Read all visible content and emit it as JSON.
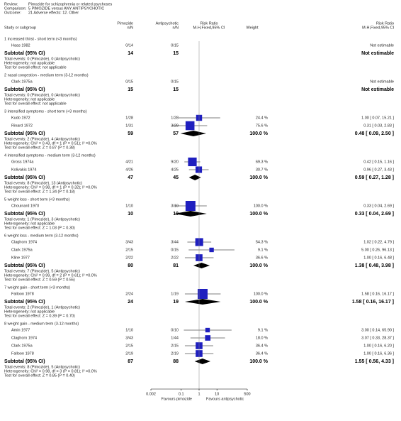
{
  "chart_data": {
    "type": "forest",
    "log": true,
    "header": [
      {
        "label": "Review:",
        "text": "Pimozide for schizophrenia or related psychoses"
      },
      {
        "label": "Comparison:",
        "text": "5 PIMOZIDE versus ANY ANTIPSYCHOTIC"
      },
      {
        "label": "Outcome:",
        "text": "21 Adverse effects: 12. Other"
      }
    ],
    "columns": {
      "study": "Study or subgroup",
      "pimozide": [
        "Pimozide",
        "n/N"
      ],
      "antipsychotic": [
        "Antipsychotic",
        "n/N"
      ],
      "plot": [
        "Risk Ratio",
        "M-H,Fixed,95% CI"
      ],
      "weight": "Weight",
      "effect": [
        "Risk Ratio",
        "M-H,Fixed,95% CI"
      ]
    },
    "xlim": [
      0.002,
      500
    ],
    "xticks": [
      0.002,
      0.1,
      1,
      10,
      500
    ],
    "favours_left": "Favours pimozide",
    "favours_right": "Favours antipsychotic",
    "marker_color": "#1f1fbf",
    "groups": [
      {
        "title": "1 increased thirst - short term (<3 months)",
        "studies": [
          {
            "name": "Haas 1982",
            "pimozide": "0/14",
            "antipsychotic": "0/15",
            "weight": null,
            "weight_label": null,
            "rr": null,
            "ci": null,
            "rr_label": "Not estimable"
          }
        ],
        "subtotal": {
          "label": "Subtotal (95% CI)",
          "pimozide": 14,
          "antipsychotic": 15,
          "weight_label": null,
          "rr": null,
          "ci": null,
          "rr_label": "Not estimable"
        },
        "notes": [
          "Total events: 0 (Pimozide), 0 (Antipsychotic)",
          "Heterogeneity: not applicable",
          "Test for overall effect: not applicable"
        ]
      },
      {
        "title": "2 nasal congestion - medium term (3-12 months)",
        "studies": [
          {
            "name": "Clark 1975a",
            "pimozide": "0/15",
            "antipsychotic": "0/15",
            "weight": null,
            "weight_label": null,
            "rr": null,
            "ci": null,
            "rr_label": "Not estimable"
          }
        ],
        "subtotal": {
          "label": "Subtotal (95% CI)",
          "pimozide": 15,
          "antipsychotic": 15,
          "weight_label": null,
          "rr": null,
          "ci": null,
          "rr_label": "Not estimable"
        },
        "notes": [
          "Total events: 0 (Pimozide), 0 (Antipsychotic)",
          "Heterogeneity: not applicable",
          "Test for overall effect: not applicable"
        ]
      },
      {
        "title": "3 intensified symptoms - short term (<3 months)",
        "studies": [
          {
            "name": "Kudo 1972",
            "pimozide": "1/28",
            "antipsychotic": "1/28",
            "weight": 24.4,
            "weight_label": "24.4 %",
            "rr": 1.0,
            "ci": [
              0.07,
              15.21
            ],
            "rr_label": "1.00 [ 0.07, 15.21 ]"
          },
          {
            "name": "Rinard 1972",
            "pimozide": "1/31",
            "antipsychotic": "3/29",
            "weight": 75.6,
            "weight_label": "75.6 %",
            "rr": 0.31,
            "ci": [
              0.03,
              2.83
            ],
            "rr_label": "0.31 [ 0.03, 2.83 ]"
          }
        ],
        "subtotal": {
          "label": "Subtotal (95% CI)",
          "pimozide": 59,
          "antipsychotic": 57,
          "weight_label": "100.0 %",
          "rr": 0.48,
          "ci": [
            0.09,
            2.5
          ],
          "rr_label": "0.48 [ 0.09, 2.50 ]"
        },
        "notes": [
          "Total events: 2 (Pimozide), 4 (Antipsychotic)",
          "Heterogeneity: Chi² = 0.43, df = 1 (P = 0.51); I² =0.0%",
          "Test for overall effect: Z = 0.87 (P = 0.38)"
        ]
      },
      {
        "title": "4 intensified symptoms - medium term (3-12 months)",
        "studies": [
          {
            "name": "Gross 1974a",
            "pimozide": "4/21",
            "antipsychotic": "9/20",
            "weight": 69.3,
            "weight_label": "69.3 %",
            "rr": 0.42,
            "ci": [
              0.15,
              1.16
            ],
            "rr_label": "0.42 [ 0.15, 1.16 ]"
          },
          {
            "name": "Kolivakis 1974",
            "pimozide": "4/26",
            "antipsychotic": "4/25",
            "weight": 30.7,
            "weight_label": "30.7 %",
            "rr": 0.96,
            "ci": [
              0.27,
              3.43
            ],
            "rr_label": "0.96 [ 0.27, 3.43 ]"
          }
        ],
        "subtotal": {
          "label": "Subtotal (95% CI)",
          "pimozide": 47,
          "antipsychotic": 45,
          "weight_label": "100.0 %",
          "rr": 0.59,
          "ci": [
            0.27,
            1.28
          ],
          "rr_label": "0.59 [ 0.27, 1.28 ]"
        },
        "notes": [
          "Total events: 8 (Pimozide), 13 (Antipsychotic)",
          "Heterogeneity: Chi² = 0.98, df = 1 (P = 0.32); I² =0.0%",
          "Test for overall effect: Z = 1.34 (P = 0.18)"
        ]
      },
      {
        "title": "5 weight loss - short term (<3 months)",
        "studies": [
          {
            "name": "Chouinard 1970",
            "pimozide": "1/10",
            "antipsychotic": "3/10",
            "weight": 100.0,
            "weight_label": "100.0 %",
            "rr": 0.33,
            "ci": [
              0.04,
              2.69
            ],
            "rr_label": "0.33 [ 0.04, 2.69 ]"
          }
        ],
        "subtotal": {
          "label": "Subtotal (95% CI)",
          "pimozide": 10,
          "antipsychotic": 10,
          "weight_label": "100.0 %",
          "rr": 0.33,
          "ci": [
            0.04,
            2.69
          ],
          "rr_label": "0.33 [ 0.04, 2.69 ]"
        },
        "notes": [
          "Total events: 1 (Pimozide), 3 (Antipsychotic)",
          "Heterogeneity: not applicable",
          "Test for overall effect: Z = 1.03 (P = 0.30)"
        ]
      },
      {
        "title": "6 weight loss - medium term (3-12 months)",
        "studies": [
          {
            "name": "Claghorn 1974",
            "pimozide": "3/43",
            "antipsychotic": "3/44",
            "weight": 54.3,
            "weight_label": "54.3 %",
            "rr": 1.02,
            "ci": [
              0.22,
              4.79
            ],
            "rr_label": "1.02 [ 0.22, 4.79 ]"
          },
          {
            "name": "Clark 1975a",
            "pimozide": "2/15",
            "antipsychotic": "0/15",
            "weight": 9.1,
            "weight_label": "9.1 %",
            "rr": 5.0,
            "ci": [
              0.26,
              96.13
            ],
            "rr_label": "5.00 [ 0.26, 96.13 ]"
          },
          {
            "name": "Kline 1977",
            "pimozide": "2/22",
            "antipsychotic": "2/22",
            "weight": 36.6,
            "weight_label": "36.6 %",
            "rr": 1.0,
            "ci": [
              0.16,
              6.48
            ],
            "rr_label": "1.00 [ 0.16, 6.48 ]"
          }
        ],
        "subtotal": {
          "label": "Subtotal (95% CI)",
          "pimozide": 80,
          "antipsychotic": 81,
          "weight_label": "100.0 %",
          "rr": 1.38,
          "ci": [
            0.48,
            3.98
          ],
          "rr_label": "1.38 [ 0.48, 3.98 ]"
        },
        "notes": [
          "Total events: 7 (Pimozide), 5 (Antipsychotic)",
          "Heterogeneity: Chi² = 0.99, df = 2 (P = 0.61); I² =0.0%",
          "Test for overall effect: Z = 0.59 (P = 0.55)"
        ]
      },
      {
        "title": "7 weight gain - short term (<3 months)",
        "studies": [
          {
            "name": "Falloon 1978",
            "pimozide": "2/24",
            "antipsychotic": "1/19",
            "weight": 100.0,
            "weight_label": "100.0 %",
            "rr": 1.58,
            "ci": [
              0.16,
              16.17
            ],
            "rr_label": "1.58 [ 0.16, 16.17 ]"
          }
        ],
        "subtotal": {
          "label": "Subtotal (95% CI)",
          "pimozide": 24,
          "antipsychotic": 19,
          "weight_label": "100.0 %",
          "rr": 1.58,
          "ci": [
            0.16,
            16.17
          ],
          "rr_label": "1.58 [ 0.16, 16.17 ]"
        },
        "notes": [
          "Total events: 2 (Pimozide), 1 (Antipsychotic)",
          "Heterogeneity: not applicable",
          "Test for overall effect: Z = 0.39 (P = 0.70)"
        ]
      },
      {
        "title": "8 weight gain - medium term (3-12 months)",
        "studies": [
          {
            "name": "Amin 1977",
            "pimozide": "1/10",
            "antipsychotic": "0/10",
            "weight": 9.1,
            "weight_label": "9.1 %",
            "rr": 3.0,
            "ci": [
              0.14,
              65.9
            ],
            "rr_label": "3.00 [ 0.14, 65.90 ]"
          },
          {
            "name": "Claghorn 1974",
            "pimozide": "3/43",
            "antipsychotic": "1/44",
            "weight": 18.0,
            "weight_label": "18.0 %",
            "rr": 3.07,
            "ci": [
              0.33,
              28.37
            ],
            "rr_label": "3.07 [ 0.33, 28.37 ]"
          },
          {
            "name": "Clark 1975a",
            "pimozide": "2/15",
            "antipsychotic": "2/15",
            "weight": 36.4,
            "weight_label": "36.4 %",
            "rr": 1.0,
            "ci": [
              0.16,
              6.2
            ],
            "rr_label": "1.00 [ 0.16, 6.20 ]"
          },
          {
            "name": "Falloon 1978",
            "pimozide": "2/19",
            "antipsychotic": "2/19",
            "weight": 36.4,
            "weight_label": "36.4 %",
            "rr": 1.0,
            "ci": [
              0.16,
              6.36
            ],
            "rr_label": "1.00 [ 0.16, 6.36 ]"
          }
        ],
        "subtotal": {
          "label": "Subtotal (95% CI)",
          "pimozide": 87,
          "antipsychotic": 88,
          "weight_label": "100.0 %",
          "rr": 1.55,
          "ci": [
            0.56,
            4.33
          ],
          "rr_label": "1.55 [ 0.56, 4.33 ]"
        },
        "notes": [
          "Total events: 8 (Pimozide), 5 (Antipsychotic)",
          "Heterogeneity: Chi² = 0.98, df = 3 (P = 0.81); I² =0.0%",
          "Test for overall effect: Z = 0.85 (P = 0.40)"
        ]
      }
    ]
  }
}
